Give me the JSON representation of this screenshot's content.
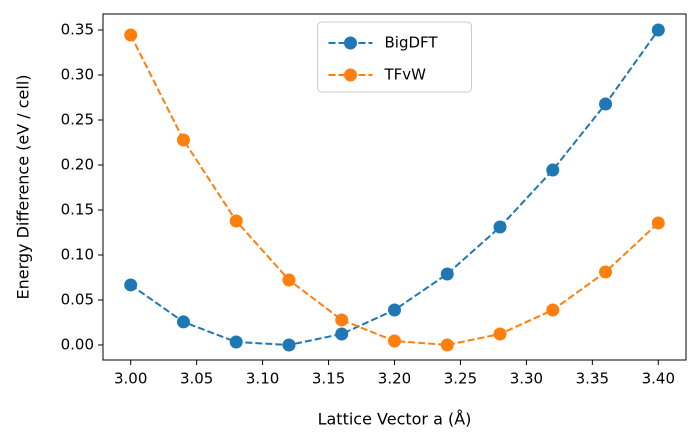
{
  "chart_data": {
    "type": "line",
    "xlabel": "Lattice Vector a (Å)",
    "ylabel": "Energy Difference (eV / cell)",
    "x": [
      3.0,
      3.04,
      3.08,
      3.12,
      3.16,
      3.2,
      3.24,
      3.28,
      3.32,
      3.36,
      3.4
    ],
    "series": [
      {
        "name": "BigDFT",
        "color": "#1f77b4",
        "values": [
          0.0667,
          0.0256,
          0.0033,
          0.0,
          0.0122,
          0.0389,
          0.0789,
          0.1311,
          0.1944,
          0.2678,
          0.35
        ]
      },
      {
        "name": "TFvW",
        "color": "#ff7f0e",
        "values": [
          0.3444,
          0.2278,
          0.1378,
          0.0722,
          0.0278,
          0.0044,
          0.0,
          0.0122,
          0.0389,
          0.0811,
          0.1356
        ]
      }
    ],
    "xlim": [
      2.979,
      3.421
    ],
    "ylim": [
      -0.0167,
      0.3678
    ],
    "xticks": [
      {
        "value": 3.0,
        "label": "3.00"
      },
      {
        "value": 3.05,
        "label": "3.05"
      },
      {
        "value": 3.1,
        "label": "3.10"
      },
      {
        "value": 3.15,
        "label": "3.15"
      },
      {
        "value": 3.2,
        "label": "3.20"
      },
      {
        "value": 3.25,
        "label": "3.25"
      },
      {
        "value": 3.3,
        "label": "3.30"
      },
      {
        "value": 3.35,
        "label": "3.35"
      },
      {
        "value": 3.4,
        "label": "3.40"
      }
    ],
    "yticks": [
      {
        "value": 0.0,
        "label": "0.00"
      },
      {
        "value": 0.05,
        "label": "0.05"
      },
      {
        "value": 0.1,
        "label": "0.10"
      },
      {
        "value": 0.15,
        "label": "0.15"
      },
      {
        "value": 0.2,
        "label": "0.20"
      },
      {
        "value": 0.25,
        "label": "0.25"
      },
      {
        "value": 0.3,
        "label": "0.30"
      },
      {
        "value": 0.35,
        "label": "0.35"
      }
    ],
    "legend": "upper center",
    "grid": false
  }
}
